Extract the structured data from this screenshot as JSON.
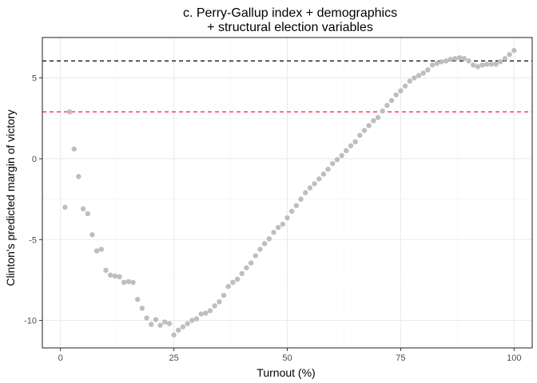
{
  "chart_data": {
    "type": "scatter",
    "title_lines": [
      "c. Perry-Gallup index + demographics",
      "+ structural election variables"
    ],
    "xlabel": "Turnout (%)",
    "ylabel": "Clinton's predicted margin of victory",
    "xlim": [
      -4,
      104
    ],
    "ylim": [
      -11.7,
      7.5
    ],
    "x_ticks": [
      0,
      25,
      50,
      75,
      100
    ],
    "y_ticks": [
      -10,
      -5,
      0,
      5
    ],
    "x_tick_labels": [
      "0",
      "25",
      "50",
      "75",
      "100"
    ],
    "y_tick_labels": [
      "-10",
      "-5",
      "0",
      "5"
    ],
    "grid": true,
    "reference_lines": [
      {
        "y": 6.05,
        "color": "#000000",
        "style": "dashed"
      },
      {
        "y": 2.9,
        "color": "#ff2a4d",
        "style": "dashed"
      }
    ],
    "point_color": "#bebebe",
    "x": [
      1,
      2,
      3,
      4,
      5,
      6,
      7,
      8,
      9,
      10,
      11,
      12,
      13,
      14,
      15,
      16,
      17,
      18,
      19,
      20,
      21,
      22,
      23,
      24,
      25,
      26,
      27,
      28,
      29,
      30,
      31,
      32,
      33,
      34,
      35,
      36,
      37,
      38,
      39,
      40,
      41,
      42,
      43,
      44,
      45,
      46,
      47,
      48,
      49,
      50,
      51,
      52,
      53,
      54,
      55,
      56,
      57,
      58,
      59,
      60,
      61,
      62,
      63,
      64,
      65,
      66,
      67,
      68,
      69,
      70,
      71,
      72,
      73,
      74,
      75,
      76,
      77,
      78,
      79,
      80,
      81,
      82,
      83,
      84,
      85,
      86,
      87,
      88,
      89,
      90,
      91,
      92,
      93,
      94,
      95,
      96,
      97,
      98,
      99,
      100
    ],
    "y": [
      -3.0,
      2.9,
      0.6,
      -1.1,
      -3.1,
      -3.4,
      -4.7,
      -5.7,
      -5.6,
      -6.9,
      -7.2,
      -7.25,
      -7.3,
      -7.65,
      -7.6,
      -7.65,
      -8.7,
      -9.25,
      -9.85,
      -10.25,
      -9.95,
      -10.3,
      -10.1,
      -10.2,
      -10.9,
      -10.6,
      -10.4,
      -10.2,
      -10.0,
      -9.9,
      -9.6,
      -9.55,
      -9.4,
      -9.1,
      -8.85,
      -8.45,
      -7.9,
      -7.65,
      -7.45,
      -7.1,
      -6.75,
      -6.45,
      -6.0,
      -5.6,
      -5.25,
      -4.95,
      -4.55,
      -4.25,
      -4.05,
      -3.65,
      -3.25,
      -2.9,
      -2.5,
      -2.1,
      -1.8,
      -1.55,
      -1.25,
      -0.95,
      -0.65,
      -0.3,
      -0.05,
      0.2,
      0.5,
      0.8,
      1.05,
      1.45,
      1.75,
      2.05,
      2.35,
      2.55,
      2.95,
      3.3,
      3.6,
      3.95,
      4.2,
      4.5,
      4.8,
      5.0,
      5.15,
      5.3,
      5.5,
      5.8,
      5.9,
      6.0,
      6.05,
      6.15,
      6.2,
      6.25,
      6.2,
      6.05,
      5.8,
      5.7,
      5.8,
      5.85,
      5.85,
      5.85,
      6.0,
      6.2,
      6.45,
      6.7
    ]
  }
}
